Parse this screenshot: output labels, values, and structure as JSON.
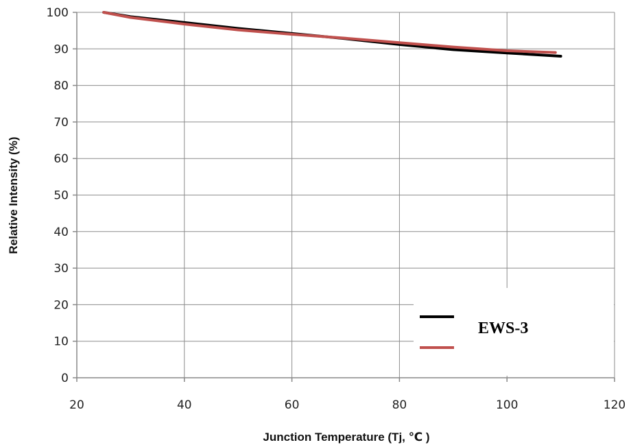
{
  "chart_data": {
    "type": "line",
    "xlabel": "Junction Temperature (Tj, ℃ )",
    "ylabel": "Relative Intensity (%)",
    "xlim": [
      20,
      120
    ],
    "ylim": [
      0,
      100
    ],
    "x_ticks": [
      "20",
      "40",
      "60",
      "80",
      "100",
      "120"
    ],
    "y_ticks": [
      "0",
      "10",
      "20",
      "30",
      "40",
      "50",
      "60",
      "70",
      "80",
      "90",
      "100"
    ],
    "grid": true,
    "legend_placement": "bottom-right",
    "series": [
      {
        "name": "EWS-3",
        "color": "#000000",
        "x": [
          25,
          30,
          40,
          50,
          60,
          70,
          80,
          90,
          100,
          110
        ],
        "y": [
          100,
          98.8,
          97.2,
          95.6,
          94.2,
          92.8,
          91.2,
          89.8,
          88.9,
          88.0
        ]
      },
      {
        "color": "#c0504d",
        "x": [
          25,
          30,
          40,
          50,
          60,
          70,
          80,
          90,
          100,
          109
        ],
        "y": [
          100,
          98.6,
          96.8,
          95.2,
          94.0,
          92.9,
          91.7,
          90.5,
          89.5,
          89.0
        ]
      }
    ]
  }
}
